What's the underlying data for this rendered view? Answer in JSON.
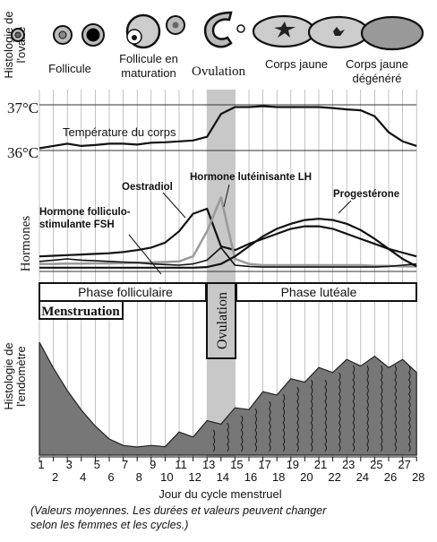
{
  "ovary_stages": [
    {
      "id": "follicule",
      "label": "Follicule"
    },
    {
      "id": "follicule-maturation",
      "label": "Follicule en\nmaturation"
    },
    {
      "id": "ovulation",
      "label": "Ovulation"
    },
    {
      "id": "corps-jaune",
      "label": "Corps jaune"
    },
    {
      "id": "corps-jaune-degenere",
      "label": "Corps jaune\ndégénéré"
    }
  ],
  "ovary_axis_label": "Histologie de\nl'ovaire",
  "temperature": {
    "label": "Température du corps",
    "ticks": [
      "37°C",
      "36°C"
    ],
    "values": [
      36.05,
      36.1,
      36.15,
      36.1,
      36.12,
      36.15,
      36.15,
      36.13,
      36.17,
      36.18,
      36.2,
      36.22,
      36.3,
      36.8,
      36.95,
      36.95,
      36.97,
      36.95,
      36.95,
      36.95,
      36.95,
      36.93,
      36.9,
      36.88,
      36.75,
      36.4,
      36.2,
      36.1
    ]
  },
  "hormones": {
    "axis_label": "Hormones",
    "series": [
      {
        "name": "Oestradiol",
        "values": [
          1.2,
          1.25,
          1.3,
          1.35,
          1.4,
          1.45,
          1.55,
          1.7,
          1.9,
          2.3,
          3.2,
          4.6,
          5.0,
          2.0,
          1.7,
          2.2,
          2.6,
          3.0,
          3.4,
          3.6,
          3.6,
          3.4,
          3.0,
          2.6,
          2.2,
          1.8,
          1.5,
          1.2
        ]
      },
      {
        "name": "Hormone lutéinisante LH",
        "values": [
          0.6,
          0.6,
          0.62,
          0.62,
          0.64,
          0.64,
          0.66,
          0.7,
          0.72,
          0.75,
          0.8,
          1.2,
          3.2,
          5.9,
          1.0,
          0.6,
          0.5,
          0.5,
          0.5,
          0.5,
          0.5,
          0.5,
          0.5,
          0.5,
          0.45,
          0.45,
          0.4,
          0.4
        ]
      },
      {
        "name": "Hormone folliculo-\nstimulante FSH",
        "values": [
          0.8,
          0.9,
          1.0,
          0.9,
          0.85,
          0.8,
          0.75,
          0.7,
          0.6,
          0.55,
          0.5,
          0.6,
          0.9,
          1.9,
          0.5,
          0.4,
          0.35,
          0.35,
          0.35,
          0.35,
          0.35,
          0.35,
          0.35,
          0.35,
          0.35,
          0.4,
          0.5,
          0.6
        ]
      },
      {
        "name": "Progestérone",
        "values": [
          0.3,
          0.3,
          0.3,
          0.3,
          0.3,
          0.3,
          0.3,
          0.3,
          0.3,
          0.3,
          0.3,
          0.3,
          0.35,
          0.6,
          1.2,
          2.0,
          2.8,
          3.4,
          3.8,
          4.1,
          4.2,
          4.1,
          3.8,
          3.3,
          2.6,
          1.8,
          1.0,
          0.4
        ]
      }
    ]
  },
  "phases": {
    "folliculaire": "Phase folliculaire",
    "luteale": "Phase lutéale",
    "ovulation": "Ovulation",
    "menstruation": "Menstruation"
  },
  "endometrium": {
    "axis_label": "Histologie de\nl'endomètre",
    "thickness": [
      3.5,
      2.7,
      2.0,
      1.4,
      0.9,
      0.5,
      0.3,
      0.25,
      0.3,
      0.4,
      0.55,
      0.7,
      0.9,
      1.1,
      1.3,
      1.55,
      1.8,
      2.0,
      2.2,
      2.4,
      2.55,
      2.7,
      2.8,
      2.9,
      2.9,
      2.85,
      2.8,
      2.7
    ]
  },
  "x_axis": {
    "label": "Jour du cycle menstruel",
    "days": [
      "1",
      "2",
      "3",
      "4",
      "5",
      "6",
      "7",
      "8",
      "9",
      "10",
      "11",
      "12",
      "13",
      "14",
      "15",
      "16",
      "17",
      "18",
      "19",
      "20",
      "21",
      "22",
      "23",
      "24",
      "25",
      "26",
      "27",
      "28"
    ]
  },
  "caption": "(Valeurs moyennes. Les durées et valeurs peuvent changer\nselon les femmes et les cycles.)"
}
